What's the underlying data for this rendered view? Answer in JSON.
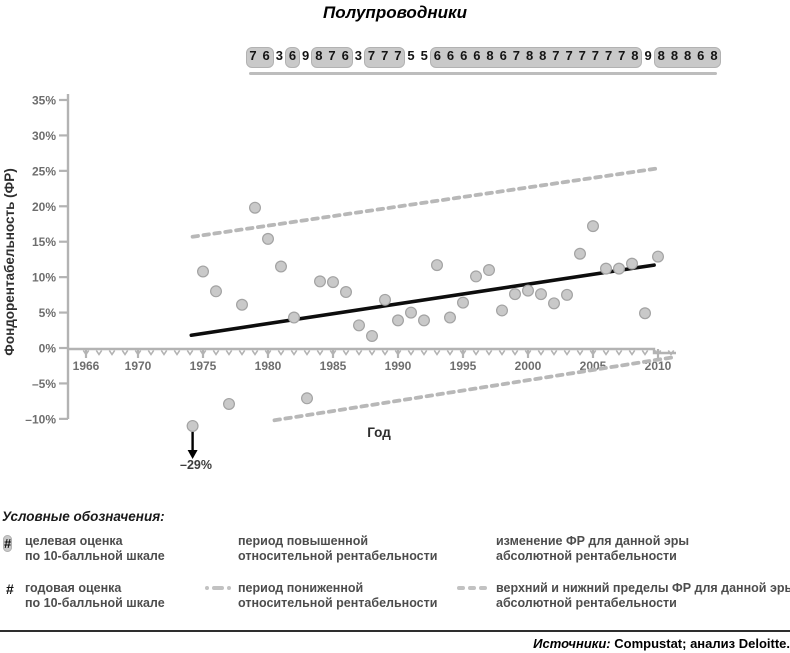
{
  "title": "Полупроводники",
  "scores": {
    "values": [
      7,
      6,
      3,
      6,
      9,
      8,
      7,
      6,
      3,
      7,
      7,
      7,
      5,
      5,
      6,
      6,
      6,
      6,
      8,
      6,
      7,
      8,
      8,
      7,
      7,
      7,
      7,
      7,
      7,
      8,
      9,
      8,
      8,
      8,
      6,
      8
    ],
    "boxed_groups": [
      [
        0,
        1
      ],
      [
        3,
        3
      ],
      [
        5,
        7
      ],
      [
        9,
        11
      ],
      [
        14,
        29
      ],
      [
        31,
        35
      ]
    ]
  },
  "chart_data": {
    "type": "scatter",
    "title": "Полупроводники",
    "xlabel": "Год",
    "ylabel": "Фондорентабельность (ФР)",
    "xlim": [
      1964.5,
      2011.5
    ],
    "ylim": [
      -10,
      35
    ],
    "grid": false,
    "y_ticks": [
      {
        "value": 35,
        "label": "35%"
      },
      {
        "value": 30,
        "label": "30%"
      },
      {
        "value": 25,
        "label": "25%"
      },
      {
        "value": 20,
        "label": "20%"
      },
      {
        "value": 15,
        "label": "15%"
      },
      {
        "value": 10,
        "label": "10%"
      },
      {
        "value": 5,
        "label": "5%"
      },
      {
        "value": 0,
        "label": "0%"
      },
      {
        "value": -5,
        "label": "–5%"
      },
      {
        "value": -10,
        "label": "–10%"
      }
    ],
    "x_ticks_labeled": [
      {
        "year": 1966,
        "label": "1966"
      },
      {
        "year": 1970,
        "label": "1970"
      },
      {
        "year": 1975,
        "label": "1975"
      },
      {
        "year": 1980,
        "label": "1980"
      },
      {
        "year": 1985,
        "label": "1985"
      },
      {
        "year": 1990,
        "label": "1990"
      },
      {
        "year": 1995,
        "label": "1995"
      },
      {
        "year": 2000,
        "label": "2000"
      },
      {
        "year": 2005,
        "label": "2005"
      },
      {
        "year": 2010,
        "label": "2010"
      }
    ],
    "minor_tick_years": [
      1966,
      2011
    ],
    "points": {
      "years": [
        1975,
        1976,
        1977,
        1978,
        1979,
        1980,
        1981,
        1982,
        1983,
        1984,
        1985,
        1986,
        1987,
        1988,
        1989,
        1990,
        1991,
        1992,
        1993,
        1994,
        1995,
        1996,
        1997,
        1998,
        1999,
        2000,
        2001,
        2002,
        2003,
        2004,
        2005,
        2006,
        2007,
        2008,
        2009,
        2010
      ],
      "values": [
        10.8,
        8.0,
        -7.9,
        6.1,
        19.8,
        15.4,
        11.5,
        4.3,
        -7.1,
        9.4,
        9.3,
        7.9,
        3.2,
        1.7,
        6.8,
        3.9,
        5.0,
        3.9,
        11.7,
        4.3,
        6.4,
        10.1,
        11.0,
        5.3,
        7.6,
        8.1,
        7.6,
        6.3,
        7.5,
        13.3,
        17.2,
        11.2,
        11.2,
        11.9,
        4.9,
        12.9
      ]
    },
    "clipped_point": {
      "year": 1974.2,
      "value": -29,
      "plotted_at": -11,
      "label": "–29%"
    },
    "trend_line": {
      "x": [
        1974.1,
        2009.7
      ],
      "y": [
        1.8,
        11.7
      ]
    },
    "upper_bound": {
      "x": [
        1974.2,
        2009.8
      ],
      "y": [
        15.7,
        25.3
      ]
    },
    "lower_bound": {
      "x": [
        1980.5,
        2011.2
      ],
      "y": [
        -10.2,
        -1.3
      ]
    }
  },
  "colors": {
    "point_fill": "#c9c9c9",
    "point_stroke": "#a3a3a3",
    "dashed_line": "#b8b8b8",
    "trend_line": "#0d0d0d",
    "axis": "#b3b3b3",
    "tick_label": "#6e6e6e",
    "axis_title": "#2e2e2e",
    "annotation": "#3d3d3d"
  },
  "legend": {
    "title": "Условные обозначения:",
    "items": [
      {
        "symbol": "#",
        "line1": "целевая оценка",
        "line2": "по 10-балльной шкале"
      },
      {
        "symbol": "#",
        "line1": "годовая оценка",
        "line2": "по 10-балльной шкале"
      },
      {
        "line1": "период повышенной",
        "line2": "относительной рентабельности"
      },
      {
        "line1": "период пониженной",
        "line2": "относительной рентабельности"
      },
      {
        "line1": "изменение ФР для данной эры",
        "line2": "абсолютной рентабельности"
      },
      {
        "line1": "верхний и нижний пределы ФР для данной эры",
        "line2": "абсолютной рентабельности"
      }
    ]
  },
  "source": {
    "prefix": "Источники:",
    "text": " Compustat; анализ Deloitte."
  }
}
